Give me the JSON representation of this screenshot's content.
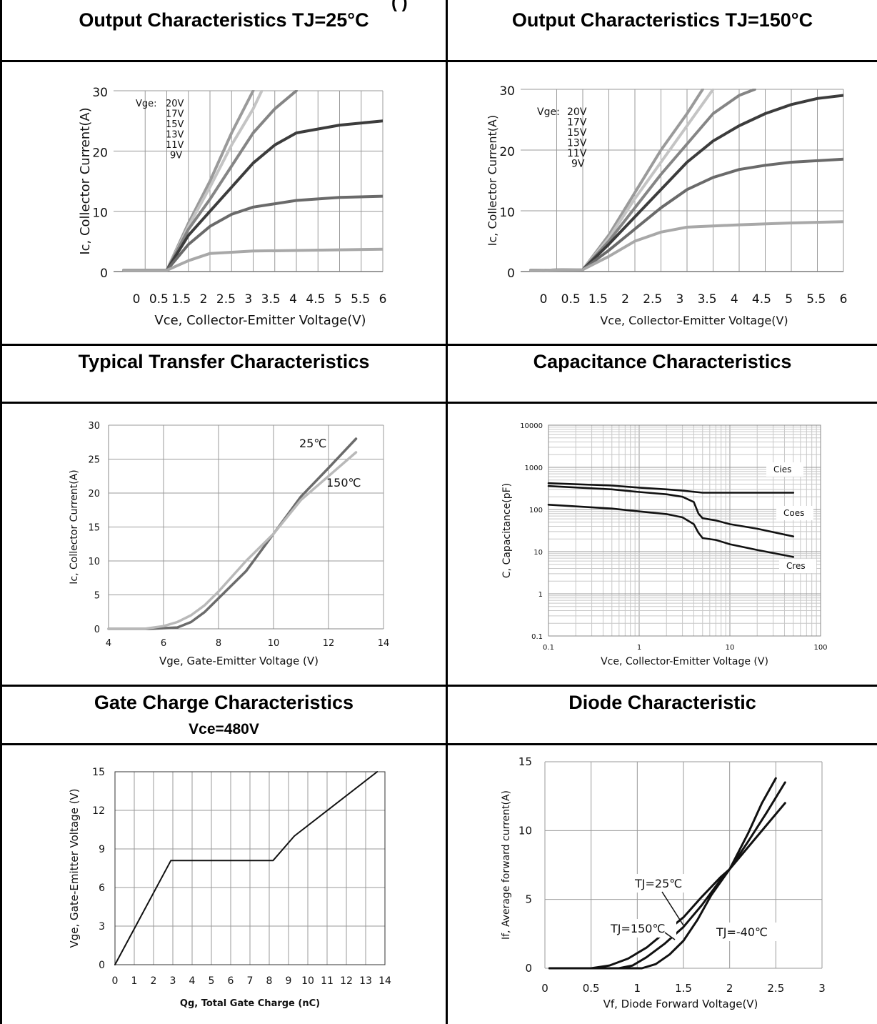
{
  "page": {
    "top_cut_text": "(          )",
    "panels": [
      {
        "title": "Output Characteristics TJ=25°C",
        "subtitle": ""
      },
      {
        "title": "Output Characteristics TJ=150°C",
        "subtitle": ""
      },
      {
        "title": "Typical Transfer Characteristics",
        "subtitle": ""
      },
      {
        "title": "Capacitance Characteristics",
        "subtitle": ""
      },
      {
        "title": "Gate Charge Characteristics",
        "subtitle": "Vce=480V"
      },
      {
        "title": "Diode Characteristic",
        "subtitle": ""
      }
    ]
  },
  "chart_data": [
    {
      "id": "out25",
      "type": "line",
      "xlabel": "Vce, Collector-Emitter Voltage(V)",
      "ylabel": "Ic, Collector Current(A)",
      "xticks": [
        "0",
        "0.5",
        "1.5",
        "2",
        "2.5",
        "3",
        "3.5",
        "4",
        "4.5",
        "5",
        "5.5",
        "6"
      ],
      "yticks": [
        0,
        10,
        20,
        30
      ],
      "ylim": [
        0,
        30
      ],
      "legend_title": "Vge:",
      "legend": [
        "20V",
        "17V",
        "15V",
        "13V",
        "11V",
        "9V"
      ],
      "colors": [
        "#9a9a9a",
        "#c4c4c4",
        "#858585",
        "#3c3c3c",
        "#6a6a6a",
        "#a8a8a8"
      ],
      "series": [
        {
          "name": "20V",
          "points": [
            [
              0,
              0.2
            ],
            [
              1,
              0.2
            ],
            [
              1.5,
              8
            ],
            [
              2,
              15
            ],
            [
              2.5,
              23
            ],
            [
              3,
              30
            ]
          ]
        },
        {
          "name": "17V",
          "points": [
            [
              0,
              0.2
            ],
            [
              1,
              0.2
            ],
            [
              1.5,
              7.5
            ],
            [
              2,
              14
            ],
            [
              2.5,
              21
            ],
            [
              3,
              27
            ],
            [
              3.2,
              30
            ]
          ]
        },
        {
          "name": "15V",
          "points": [
            [
              0,
              0.2
            ],
            [
              1,
              0.2
            ],
            [
              1.5,
              7
            ],
            [
              2,
              12
            ],
            [
              2.5,
              17.5
            ],
            [
              3,
              23
            ],
            [
              3.5,
              27
            ],
            [
              4,
              30
            ]
          ]
        },
        {
          "name": "13V",
          "points": [
            [
              0,
              0.2
            ],
            [
              1,
              0.2
            ],
            [
              1.5,
              6
            ],
            [
              2,
              10
            ],
            [
              2.5,
              14
            ],
            [
              3,
              18
            ],
            [
              3.5,
              21
            ],
            [
              4,
              23
            ],
            [
              5,
              24.3
            ],
            [
              6,
              25
            ]
          ]
        },
        {
          "name": "11V",
          "points": [
            [
              0,
              0.2
            ],
            [
              1,
              0.2
            ],
            [
              1.5,
              4.5
            ],
            [
              2,
              7.5
            ],
            [
              2.5,
              9.5
            ],
            [
              3,
              10.7
            ],
            [
              4,
              11.8
            ],
            [
              5,
              12.3
            ],
            [
              6,
              12.5
            ]
          ]
        },
        {
          "name": "9V",
          "points": [
            [
              0,
              0.2
            ],
            [
              1,
              0.2
            ],
            [
              1.5,
              1.8
            ],
            [
              2,
              3
            ],
            [
              3,
              3.4
            ],
            [
              4,
              3.5
            ],
            [
              5,
              3.6
            ],
            [
              6,
              3.7
            ]
          ]
        }
      ]
    },
    {
      "id": "out150",
      "type": "line",
      "xlabel": "Vce, Collector-Emitter Voltage(V)",
      "ylabel": "Ic, Collector Current(A)",
      "xticks": [
        "0",
        "0.5",
        "1.5",
        "2",
        "2.5",
        "3",
        "3.5",
        "4",
        "4.5",
        "5",
        "5.5",
        "6"
      ],
      "yticks": [
        0,
        10,
        20,
        30
      ],
      "ylim": [
        0,
        30
      ],
      "legend_title": "Vge:",
      "legend": [
        "20V",
        "17V",
        "15V",
        "13V",
        "11V",
        "9V"
      ],
      "colors": [
        "#9a9a9a",
        "#c4c4c4",
        "#858585",
        "#3c3c3c",
        "#6a6a6a",
        "#a8a8a8"
      ],
      "series": [
        {
          "name": "20V",
          "points": [
            [
              0,
              0.2
            ],
            [
              1,
              0.3
            ],
            [
              1.5,
              6
            ],
            [
              2,
              13
            ],
            [
              2.5,
              20
            ],
            [
              3,
              26
            ],
            [
              3.3,
              30
            ]
          ]
        },
        {
          "name": "17V",
          "points": [
            [
              0,
              0.2
            ],
            [
              1,
              0.3
            ],
            [
              1.5,
              5.5
            ],
            [
              2,
              12
            ],
            [
              2.5,
              18
            ],
            [
              3,
              24
            ],
            [
              3.5,
              30
            ]
          ]
        },
        {
          "name": "15V",
          "points": [
            [
              0,
              0.2
            ],
            [
              1,
              0.3
            ],
            [
              1.5,
              5
            ],
            [
              2,
              10.5
            ],
            [
              2.5,
              16
            ],
            [
              3,
              21
            ],
            [
              3.5,
              26
            ],
            [
              4,
              29
            ],
            [
              4.3,
              30
            ]
          ]
        },
        {
          "name": "13V",
          "points": [
            [
              0,
              0.2
            ],
            [
              1,
              0.3
            ],
            [
              1.5,
              4.5
            ],
            [
              2,
              9
            ],
            [
              2.5,
              13.5
            ],
            [
              3,
              18
            ],
            [
              3.5,
              21.5
            ],
            [
              4,
              24
            ],
            [
              4.5,
              26
            ],
            [
              5,
              27.5
            ],
            [
              5.5,
              28.5
            ],
            [
              6,
              29
            ]
          ]
        },
        {
          "name": "11V",
          "points": [
            [
              0,
              0.2
            ],
            [
              1,
              0.3
            ],
            [
              1.5,
              3.5
            ],
            [
              2,
              7
            ],
            [
              2.5,
              10.5
            ],
            [
              3,
              13.5
            ],
            [
              3.5,
              15.5
            ],
            [
              4,
              16.8
            ],
            [
              4.5,
              17.5
            ],
            [
              5,
              18
            ],
            [
              6,
              18.5
            ]
          ]
        },
        {
          "name": "9V",
          "points": [
            [
              0,
              0.2
            ],
            [
              1,
              0.3
            ],
            [
              1.5,
              2.5
            ],
            [
              2,
              5
            ],
            [
              2.5,
              6.5
            ],
            [
              3,
              7.3
            ],
            [
              4,
              7.7
            ],
            [
              5,
              8
            ],
            [
              6,
              8.2
            ]
          ]
        }
      ]
    },
    {
      "id": "transfer",
      "type": "line",
      "xlabel": "Vge, Gate-Emitter Voltage (V)",
      "ylabel": "Ic, Collector Current(A)",
      "xlim": [
        4,
        14
      ],
      "ylim": [
        0,
        30
      ],
      "xticks": [
        4,
        6,
        8,
        10,
        12,
        14
      ],
      "yticks": [
        0,
        5,
        10,
        15,
        20,
        25,
        30
      ],
      "colors": [
        "#6b6b6b",
        "#b9b9b9"
      ],
      "series": [
        {
          "name": "25℃",
          "points": [
            [
              4,
              0
            ],
            [
              5.5,
              0
            ],
            [
              6.5,
              0.2
            ],
            [
              7,
              1
            ],
            [
              7.5,
              2.5
            ],
            [
              8,
              4.5
            ],
            [
              9,
              8.5
            ],
            [
              10,
              14
            ],
            [
              11,
              19.5
            ],
            [
              12,
              23.7
            ],
            [
              13,
              28
            ]
          ]
        },
        {
          "name": "150℃",
          "points": [
            [
              4,
              0
            ],
            [
              5.3,
              0
            ],
            [
              6,
              0.4
            ],
            [
              6.5,
              1
            ],
            [
              7,
              2
            ],
            [
              7.5,
              3.5
            ],
            [
              8,
              5.5
            ],
            [
              9,
              10
            ],
            [
              10,
              14
            ],
            [
              11,
              19
            ],
            [
              12,
              22.5
            ],
            [
              13,
              26
            ]
          ]
        }
      ]
    },
    {
      "id": "capacitance",
      "type": "line",
      "xlabel": "Vce, Collector-Emitter Voltage (V)",
      "ylabel": "C, Capacitance(pF)",
      "xscale": "log",
      "yscale": "log",
      "xlim": [
        0.1,
        100
      ],
      "ylim": [
        0.1,
        10000
      ],
      "xticks": [
        "0.1",
        "1",
        "10",
        "100"
      ],
      "yticks": [
        "0.1",
        "1",
        "10",
        "100",
        "1000",
        "10000"
      ],
      "series": [
        {
          "name": "Cies",
          "points": [
            [
              0.1,
              420
            ],
            [
              0.5,
              370
            ],
            [
              1,
              330
            ],
            [
              2,
              300
            ],
            [
              3,
              280
            ],
            [
              5,
              250
            ],
            [
              10,
              250
            ],
            [
              50,
              250
            ]
          ]
        },
        {
          "name": "Coes",
          "points": [
            [
              0.1,
              360
            ],
            [
              0.5,
              300
            ],
            [
              1,
              260
            ],
            [
              2,
              230
            ],
            [
              3,
              200
            ],
            [
              4,
              150
            ],
            [
              4.5,
              80
            ],
            [
              5,
              62
            ],
            [
              7,
              55
            ],
            [
              10,
              45
            ],
            [
              20,
              35
            ],
            [
              50,
              23
            ]
          ]
        },
        {
          "name": "Cres",
          "points": [
            [
              0.1,
              130
            ],
            [
              0.5,
              105
            ],
            [
              1,
              90
            ],
            [
              2,
              78
            ],
            [
              3,
              65
            ],
            [
              4,
              45
            ],
            [
              4.5,
              28
            ],
            [
              5,
              21
            ],
            [
              7,
              19
            ],
            [
              10,
              15
            ],
            [
              20,
              11
            ],
            [
              50,
              7.5
            ]
          ]
        }
      ]
    },
    {
      "id": "gatecharge",
      "type": "line",
      "xlabel": "Qg, Total Gate Charge (nC)",
      "ylabel": "Vge, Gate-Emitter Voltage (V)",
      "xlim": [
        0,
        14
      ],
      "ylim": [
        0,
        15
      ],
      "xticks": [
        0,
        1,
        2,
        3,
        4,
        5,
        6,
        7,
        8,
        9,
        10,
        11,
        12,
        13,
        14
      ],
      "yticks": [
        0,
        3,
        6,
        9,
        12,
        15
      ],
      "series": [
        {
          "name": "Vge",
          "points": [
            [
              0,
              0
            ],
            [
              2.9,
              8.1
            ],
            [
              8.2,
              8.1
            ],
            [
              9.3,
              10
            ],
            [
              13.6,
              15
            ]
          ]
        }
      ]
    },
    {
      "id": "diode",
      "type": "line",
      "xlabel": "Vf, Diode Forward Voltage(V)",
      "ylabel": "If, Average forward current(A)",
      "xlim": [
        0,
        3
      ],
      "ylim": [
        0,
        15
      ],
      "xticks": [
        "0",
        "0.5",
        "1",
        "1.5",
        "2",
        "2.5",
        "3"
      ],
      "yticks": [
        0,
        5,
        10,
        15
      ],
      "series": [
        {
          "name": "TJ=150℃",
          "points": [
            [
              0.05,
              0
            ],
            [
              0.5,
              0
            ],
            [
              0.7,
              0.2
            ],
            [
              0.9,
              0.7
            ],
            [
              1.1,
              1.5
            ],
            [
              1.3,
              2.6
            ],
            [
              1.5,
              3.7
            ],
            [
              1.7,
              5.2
            ],
            [
              1.9,
              6.6
            ],
            [
              2,
              7.2
            ],
            [
              2.2,
              8.8
            ],
            [
              2.4,
              10.4
            ],
            [
              2.6,
              12
            ]
          ]
        },
        {
          "name": "TJ=25℃",
          "points": [
            [
              0.05,
              0
            ],
            [
              0.8,
              0
            ],
            [
              0.95,
              0.2
            ],
            [
              1.1,
              0.8
            ],
            [
              1.3,
              1.8
            ],
            [
              1.5,
              3
            ],
            [
              1.7,
              4.6
            ],
            [
              1.9,
              6.4
            ],
            [
              2,
              7.2
            ],
            [
              2.2,
              9.2
            ],
            [
              2.4,
              11.3
            ],
            [
              2.6,
              13.5
            ]
          ]
        },
        {
          "name": "TJ=-40℃",
          "points": [
            [
              0.05,
              0
            ],
            [
              1.05,
              0
            ],
            [
              1.2,
              0.3
            ],
            [
              1.35,
              1
            ],
            [
              1.5,
              2
            ],
            [
              1.65,
              3.5
            ],
            [
              1.8,
              5.3
            ],
            [
              2,
              7.2
            ],
            [
              2.2,
              9.8
            ],
            [
              2.35,
              12
            ],
            [
              2.5,
              13.8
            ]
          ]
        }
      ]
    }
  ]
}
